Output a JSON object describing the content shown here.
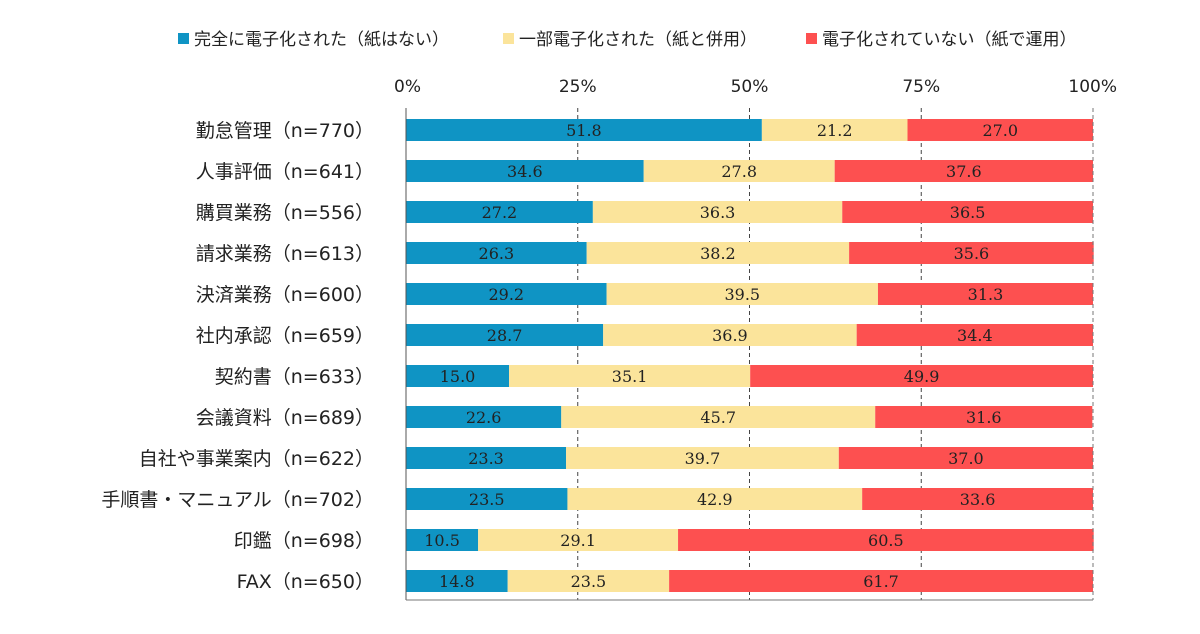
{
  "chart_data": {
    "type": "bar",
    "orientation": "horizontal",
    "stacked": true,
    "normalized_percent": true,
    "categories": [
      "勤怠管理（n=770）",
      "人事評価（n=641）",
      "購買業務（n=556）",
      "請求業務（n=613）",
      "決済業務（n=600）",
      "社内承認（n=659）",
      "契約書（n=633）",
      "会議資料（n=689）",
      "自社や事業案内（n=622）",
      "手順書・マニュアル（n=702）",
      "印鑑（n=698）",
      "FAX（n=650）"
    ],
    "series": [
      {
        "name": "完全に電子化された（紙はない）",
        "color": "#0f94c4",
        "values": [
          51.8,
          34.6,
          27.2,
          26.3,
          29.2,
          28.7,
          15.0,
          22.6,
          23.3,
          23.5,
          10.5,
          14.8
        ]
      },
      {
        "name": "一部電子化された（紙と併用）",
        "color": "#fbe49b",
        "values": [
          21.2,
          27.8,
          36.3,
          38.2,
          39.5,
          36.9,
          35.1,
          45.7,
          39.7,
          42.9,
          29.1,
          23.5
        ]
      },
      {
        "name": "電子化されていない（紙で運用）",
        "color": "#fd5050",
        "values": [
          27.0,
          37.6,
          36.5,
          35.6,
          31.3,
          34.4,
          49.9,
          31.6,
          37.0,
          33.6,
          60.5,
          61.7
        ]
      }
    ],
    "xlim": [
      0,
      100
    ],
    "xticks": [
      "0%",
      "25%",
      "50%",
      "75%",
      "100%"
    ],
    "legend_position": "top",
    "grid": "vertical dashed at 25/50/75"
  }
}
